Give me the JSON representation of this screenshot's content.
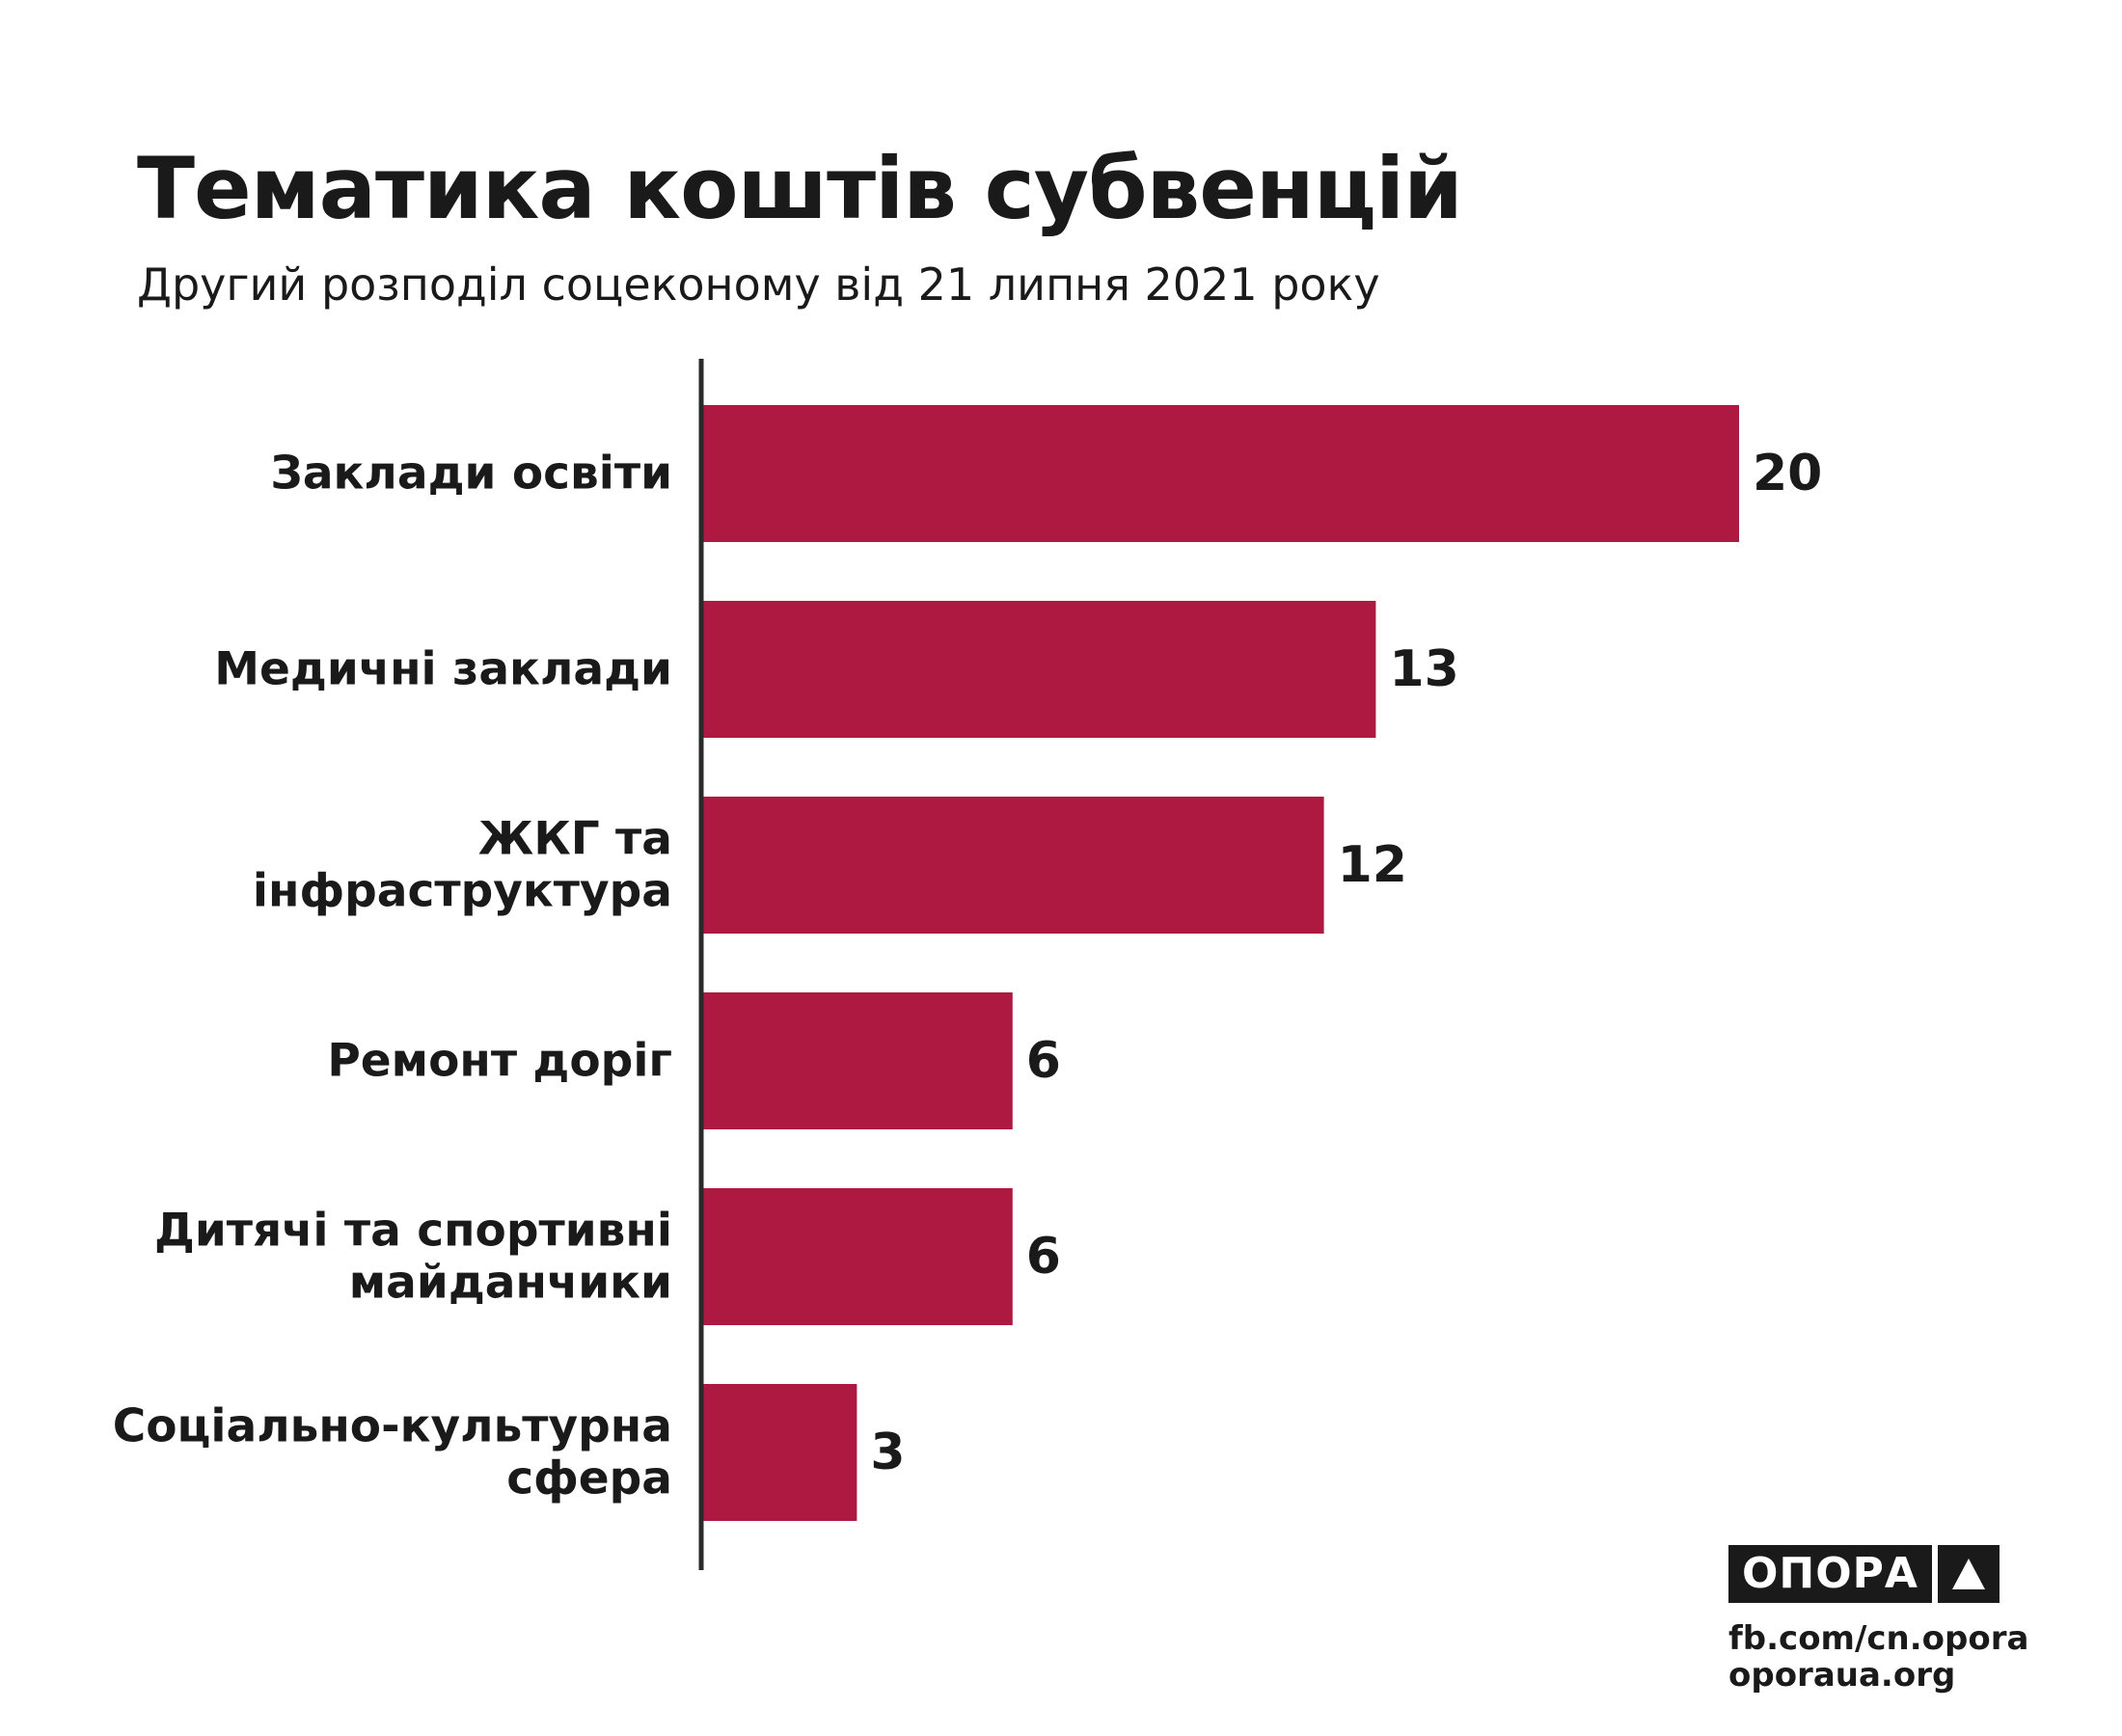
{
  "header": {
    "title": "Тематика коштів субвенцій",
    "subtitle": "Другий розподіл соцеконому від 21 липня 2021 року"
  },
  "chart_data": {
    "type": "bar",
    "orientation": "horizontal",
    "title": "Тематика коштів субвенцій",
    "subtitle": "Другий розподіл соцеконому від 21 липня 2021 року",
    "categories": [
      [
        "Заклади освіти"
      ],
      [
        "Медичні заклади"
      ],
      [
        "ЖКГ та",
        "інфраструктура"
      ],
      [
        "Ремонт доріг"
      ],
      [
        "Дитячі та спортивні",
        "майданчики"
      ],
      [
        "Соціально-культурна",
        "сфера"
      ]
    ],
    "values": [
      20,
      13,
      12,
      6,
      6,
      3
    ],
    "xlim": [
      0,
      20
    ],
    "grid": false,
    "legend": false,
    "bar_color": "#ae1942",
    "axis_color": "#2a2a2a"
  },
  "footer": {
    "logo_text": "ОПОРА",
    "logo_icon": "triangle-icon",
    "link_fb": "fb.com/cn.opora",
    "link_site": "oporaua.org"
  }
}
